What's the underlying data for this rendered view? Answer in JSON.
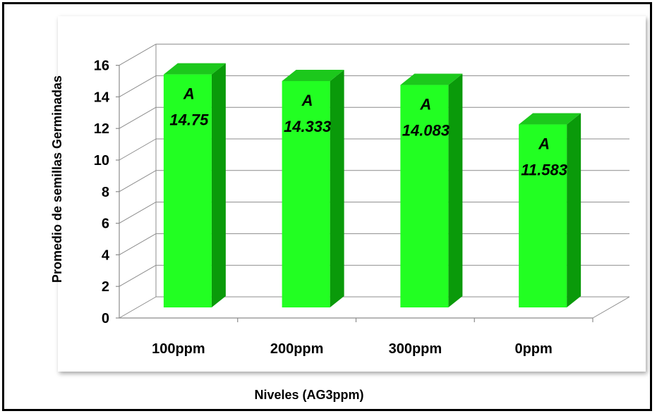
{
  "chart_data": {
    "type": "bar",
    "categories": [
      "100ppm",
      "200ppm",
      "300ppm",
      "0ppm"
    ],
    "values": [
      14.75,
      14.333,
      14.083,
      11.583
    ],
    "value_labels": [
      "14.75",
      "14.333",
      "14.083",
      "11.583"
    ],
    "group_letters": [
      "A",
      "A",
      "A",
      "A"
    ],
    "title": "",
    "xlabel": "Niveles (AG3ppm)",
    "ylabel": "Promedio de semillas  Germinadas",
    "ylim": [
      0,
      16
    ],
    "yticks": [
      "0",
      "2",
      "4",
      "6",
      "8",
      "10",
      "12",
      "14",
      "16"
    ],
    "grid": true,
    "style": "3d-column",
    "colors": {
      "front": "#22ff22",
      "side": "#0a9a0a",
      "top": "#1cc81c",
      "grid": "#8c8c8c"
    }
  }
}
